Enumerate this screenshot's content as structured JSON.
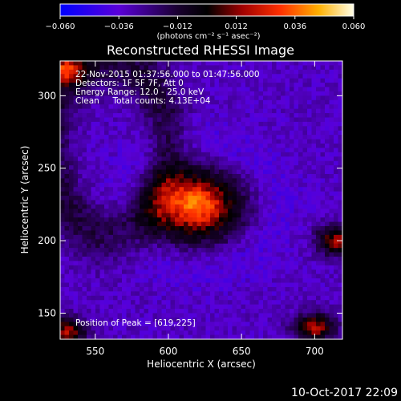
{
  "chart_data": {
    "type": "heatmap",
    "title": "Reconstructed RHESSI Image",
    "xlabel": "Heliocentric X (arcsec)",
    "ylabel": "Heliocentric Y (arcsec)",
    "xlim": [
      526,
      719
    ],
    "ylim": [
      132,
      324
    ],
    "x_ticks": [
      "550",
      "600",
      "650",
      "700"
    ],
    "x_tick_values": [
      550,
      600,
      650,
      700
    ],
    "y_ticks": [
      "150",
      "200",
      "250",
      "300"
    ],
    "y_tick_values": [
      150,
      200,
      250,
      300
    ],
    "colorbar": {
      "min": -0.06,
      "max": 0.06,
      "tick_labels": [
        "−0.060",
        "−0.036",
        "−0.012",
        "0.012",
        "0.036",
        "0.060"
      ],
      "tick_values": [
        -0.06,
        -0.036,
        -0.012,
        0.012,
        0.036,
        0.06
      ],
      "unit_label": "(photons cm⁻² s⁻¹ asec⁻²)",
      "colors": [
        "#0000ff",
        "#5a00d8",
        "#000000",
        "#d00000",
        "#ff9a00",
        "#ffffe0"
      ]
    },
    "annotations": {
      "time_range": "22-Nov-2015 01:37:56.000 to 01:47:56.000",
      "detectors": "Detectors: 1F 5F 7F, Att 0",
      "energy": "Energy Range: 12.0 - 25.0 keV",
      "clean": "Clean     Total counts: 4.13E+04",
      "peak": "Position of Peak = [619,225]"
    },
    "peak": {
      "x": 619,
      "y": 225,
      "value": 0.06
    },
    "source_extent": {
      "x": [
        586,
        654
      ],
      "y": [
        196,
        252
      ]
    }
  },
  "footer": {
    "timestamp": "10-Oct-2017 22:09"
  }
}
